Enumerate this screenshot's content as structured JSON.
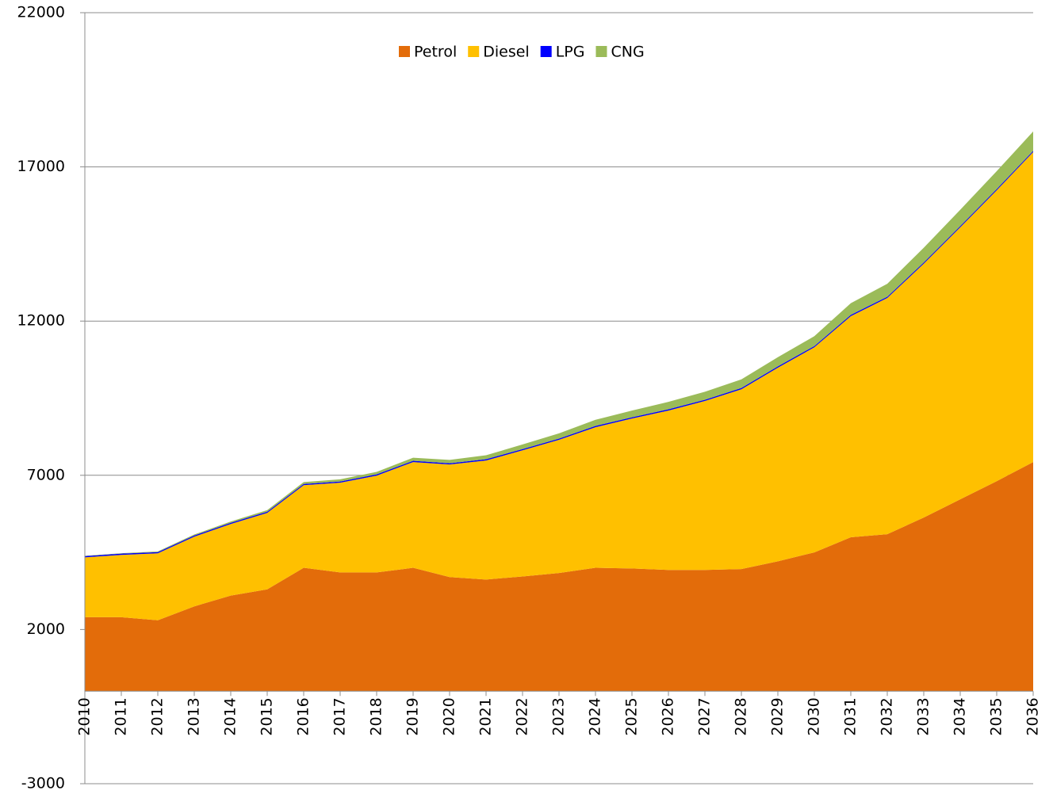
{
  "chart_data": {
    "type": "stacked_area",
    "categories": [
      "2010",
      "2011",
      "2012",
      "2013",
      "2014",
      "2015",
      "2016",
      "2017",
      "2018",
      "2019",
      "2020",
      "2021",
      "2022",
      "2023",
      "2024",
      "2025",
      "2026",
      "2027",
      "2028",
      "2029",
      "2030",
      "2031",
      "2032",
      "2033",
      "2034",
      "2035",
      "2036"
    ],
    "series": [
      {
        "name": "Petrol",
        "color": "#e36c0a",
        "values": [
          2400,
          2400,
          2300,
          2750,
          3100,
          3300,
          4000,
          3850,
          3850,
          4000,
          3700,
          3620,
          3720,
          3830,
          4000,
          3980,
          3930,
          3930,
          3960,
          4210,
          4500,
          4990,
          5090,
          5630,
          6220,
          6810,
          7430
        ]
      },
      {
        "name": "Diesel",
        "color": "#ffc000",
        "values": [
          1940,
          2020,
          2170,
          2260,
          2320,
          2480,
          2680,
          2910,
          3140,
          3430,
          3650,
          3860,
          4090,
          4320,
          4560,
          4860,
          5170,
          5480,
          5830,
          6280,
          6650,
          7170,
          7660,
          8230,
          8820,
          9430,
          10050
        ]
      },
      {
        "name": "LPG",
        "color": "#0000ff",
        "values": [
          40,
          40,
          40,
          40,
          40,
          40,
          40,
          40,
          40,
          40,
          40,
          40,
          40,
          40,
          40,
          40,
          40,
          40,
          40,
          40,
          40,
          40,
          40,
          40,
          40,
          40,
          40
        ]
      },
      {
        "name": "CNG",
        "color": "#9bbb59",
        "values": [
          10,
          15,
          20,
          30,
          40,
          50,
          60,
          70,
          80,
          100,
          110,
          130,
          150,
          170,
          200,
          220,
          240,
          260,
          280,
          300,
          320,
          380,
          420,
          480,
          530,
          580,
          630
        ]
      }
    ],
    "ylim": [
      -3000,
      22000
    ],
    "yticks": [
      -3000,
      2000,
      7000,
      12000,
      17000,
      22000
    ],
    "grid": true,
    "legend": "top"
  }
}
